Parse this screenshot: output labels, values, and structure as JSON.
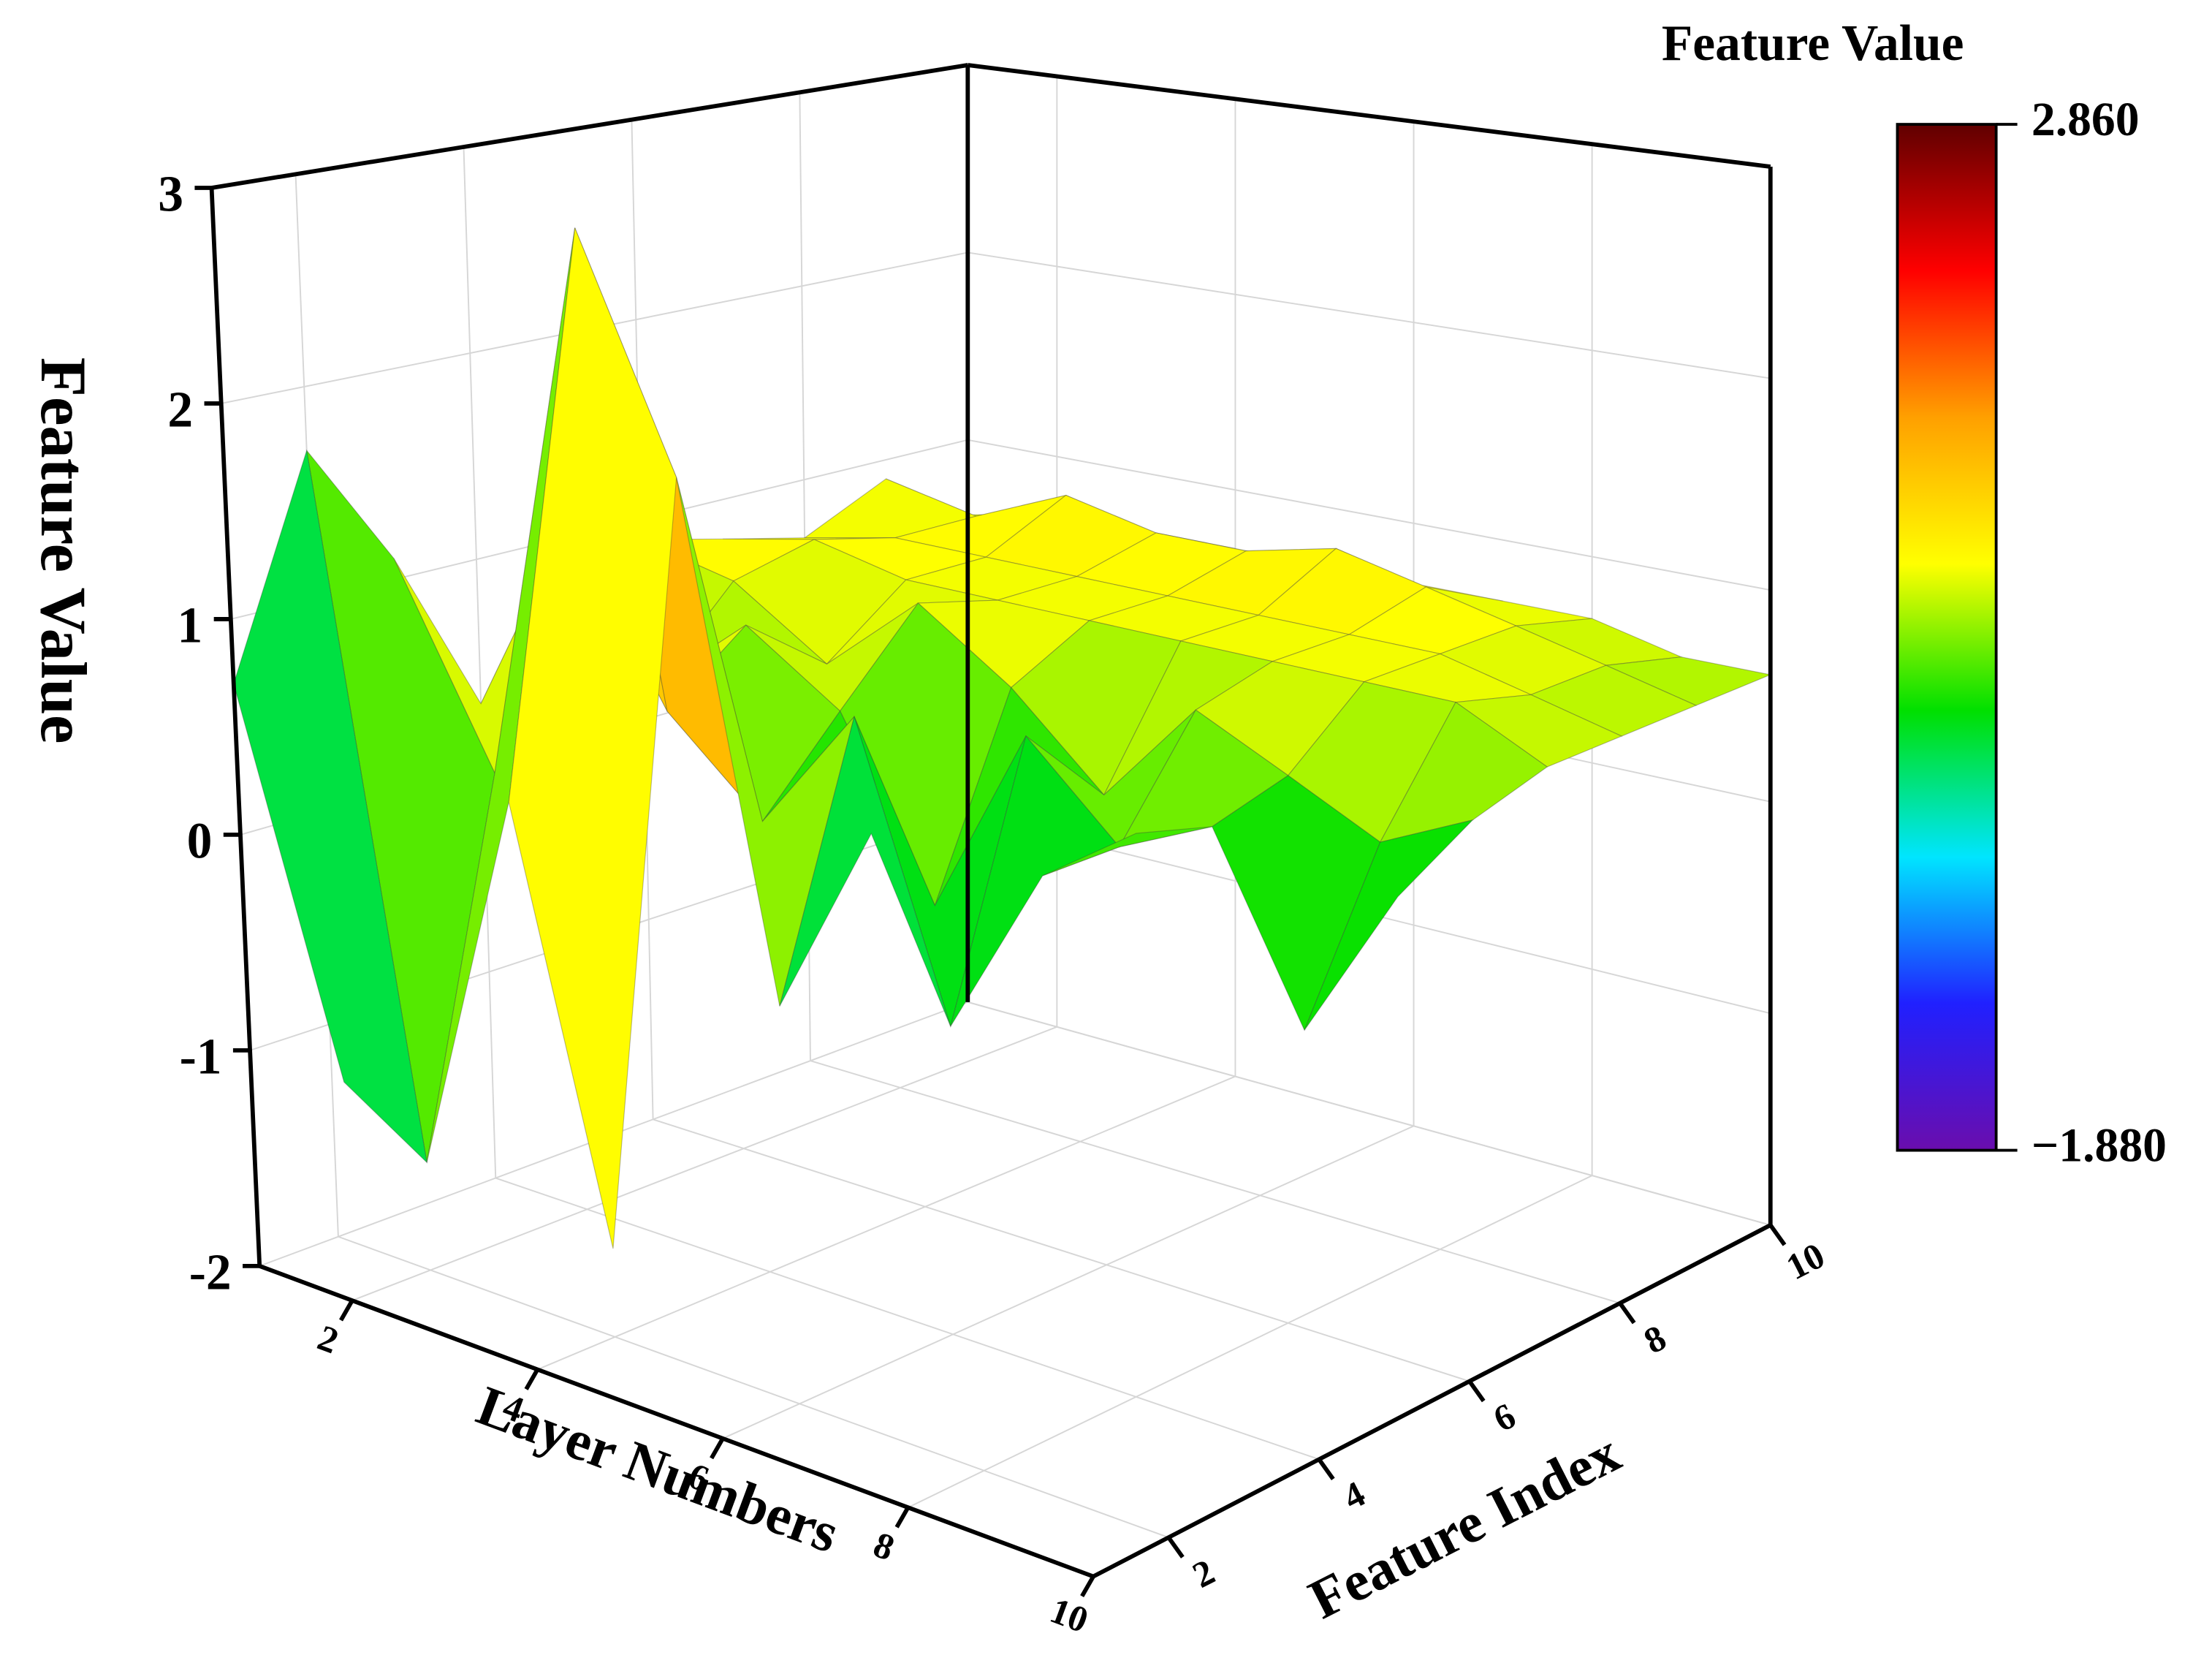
{
  "chart_data": {
    "type": "surface",
    "colorbar_title": "Feature Value",
    "zlabel": "Feature Value",
    "xlabel": "Layer Numbers",
    "ylabel": "Feature Index",
    "x": [
      1,
      2,
      3,
      4,
      5,
      6,
      7,
      8,
      9,
      10
    ],
    "y": [
      1,
      2,
      3,
      4,
      5,
      6,
      7,
      8,
      9,
      10
    ],
    "z": [
      [
        0.7,
        -1.0,
        null,
        null,
        null,
        null,
        null,
        null,
        null,
        null
      ],
      [
        1.7,
        -1.5,
        0.3,
        -1.6,
        null,
        null,
        null,
        null,
        null,
        null
      ],
      [
        1.1,
        0.2,
        2.86,
        1.8,
        -0.5,
        0.4,
        null,
        null,
        null,
        null
      ],
      [
        0.3,
        1.3,
        0.5,
        0.1,
        0.7,
        -0.6,
        0.2,
        0.5,
        null,
        null
      ],
      [
        0.6,
        0.4,
        0.8,
        0.5,
        -0.3,
        0.6,
        0.2,
        0.4,
        -0.4,
        0.3
      ],
      [
        0.9,
        0.8,
        0.5,
        0.9,
        0.6,
        0.2,
        0.7,
        0.5,
        0.3,
        0.5
      ],
      [
        0.8,
        0.9,
        0.8,
        0.8,
        0.8,
        0.8,
        0.8,
        0.8,
        0.8,
        0.6
      ],
      [
        0.7,
        0.8,
        0.8,
        0.8,
        0.8,
        0.8,
        0.8,
        0.8,
        0.7,
        0.6
      ],
      [
        0.9,
        0.8,
        1.0,
        0.9,
        0.9,
        1.0,
        0.9,
        0.8,
        0.7,
        0.6
      ],
      [
        0.6,
        0.7,
        0.7,
        0.7,
        0.7,
        0.7,
        0.7,
        0.7,
        0.6,
        0.6
      ]
    ],
    "xlim": [
      1,
      10
    ],
    "ylim": [
      1,
      10
    ],
    "zlim": [
      -2,
      3
    ],
    "xticks": [
      2,
      4,
      6,
      8,
      10
    ],
    "yticks": [
      2,
      4,
      6,
      8,
      10
    ],
    "zticks": [
      -2,
      -1,
      0,
      1,
      2,
      3
    ],
    "clim": [
      -1.88,
      2.86
    ],
    "cticks": [
      {
        "value": 2.86,
        "label": "2.860"
      },
      {
        "value": -1.88,
        "label": "−1.880"
      }
    ],
    "colormap": [
      "#6a0dad",
      "#2020ff",
      "#00e5ff",
      "#00e000",
      "#ffff00",
      "#ffa000",
      "#ff0000",
      "#600000"
    ],
    "grid": true
  }
}
